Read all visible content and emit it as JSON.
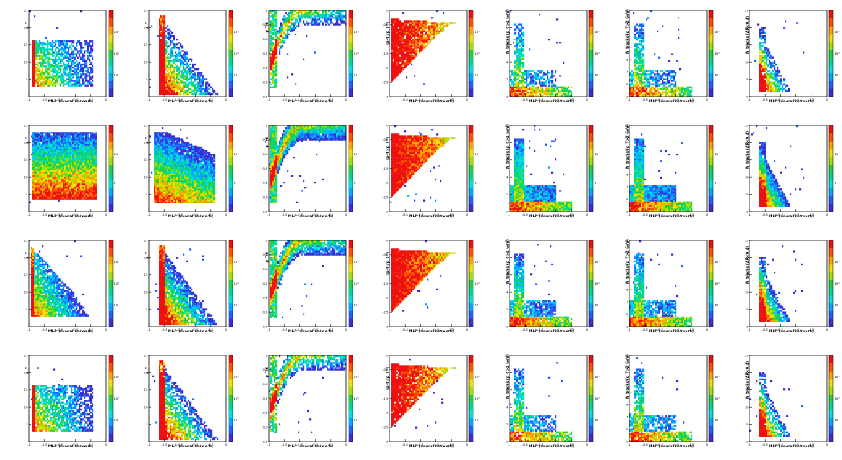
{
  "figure": {
    "rows": 4,
    "cols": 7
  },
  "chart_data": [
    {
      "type": "heatmap",
      "shape": "left-top",
      "xlabel": "MLP (neural network)",
      "ylabel": "p_T",
      "xlim": [
        -1,
        0
      ],
      "ylim": [
        0,
        25
      ],
      "xticks": [
        "-1",
        "-0.8",
        "-0.6",
        "-0.4",
        "-0.2",
        "0"
      ],
      "yticks": [
        "5",
        "10",
        "15",
        "20",
        "25"
      ],
      "colorbar": [
        "10",
        "10²",
        "10³"
      ],
      "density": "sparse"
    },
    {
      "type": "heatmap",
      "shape": "steep-decay",
      "xlabel": "MLP (neural network)",
      "ylabel": "p_T",
      "xlim": [
        -1,
        0
      ],
      "ylim": [
        0,
        25
      ],
      "xticks": [
        "-1",
        "-0.8",
        "-0.6",
        "-0.4",
        "-0.2",
        "0"
      ],
      "yticks": [
        "5",
        "10",
        "15",
        "20",
        "25"
      ],
      "colorbar": [
        "10",
        "10²",
        "10³"
      ],
      "density": "sparse"
    },
    {
      "type": "heatmap",
      "shape": "rise",
      "xlabel": "MLP (neural network)",
      "ylabel": "p_T/E",
      "xlim": [
        -1,
        0
      ],
      "ylim": [
        0.4,
        1
      ],
      "xticks": [
        "-1",
        "-0.8",
        "-0.6",
        "-0.4",
        "-0.2",
        "0"
      ],
      "yticks": [
        "0.4",
        "0.5",
        "0.6",
        "0.7",
        "0.8",
        "0.9",
        "1"
      ],
      "colorbar": [
        "10",
        "10²",
        "10³"
      ],
      "density": "sparse"
    },
    {
      "type": "heatmap",
      "shape": "funnel",
      "xlabel": "MLP (neural network)",
      "ylabel": "(p_T)/p_T^J",
      "xlim": [
        -1,
        0
      ],
      "ylim": [
        -3,
        0
      ],
      "xticks": [
        "-1",
        "-0.8",
        "-0.6",
        "-0.4",
        "-0.2",
        "0"
      ],
      "yticks": [
        "-3",
        "-2.5",
        "-2",
        "-1.5",
        "-1",
        "-0.5",
        "0"
      ],
      "colorbar": [
        "10",
        "10²",
        "10³"
      ],
      "density": "sparse"
    },
    {
      "type": "heatmap",
      "shape": "bottom-band",
      "xlabel": "MLP (neural network)",
      "ylabel": "N_tracks (p_T>1 GeV)",
      "xlim": [
        -1,
        0
      ],
      "ylim": [
        0,
        10
      ],
      "xticks": [
        "-1",
        "-0.8",
        "-0.6",
        "-0.4",
        "-0.2",
        "0"
      ],
      "yticks": [
        "0",
        "2",
        "4",
        "6",
        "8",
        "10"
      ],
      "colorbar": [
        "10",
        "10²",
        "10³"
      ],
      "density": "sparse"
    },
    {
      "type": "heatmap",
      "shape": "bottom-band",
      "xlabel": "MLP (neural network)",
      "ylabel": "N_tracks (p_T>2 GeV)",
      "xlim": [
        -1,
        0
      ],
      "ylim": [
        0,
        14
      ],
      "xticks": [
        "-1",
        "-0.8",
        "-0.6",
        "-0.4",
        "-0.2",
        "0"
      ],
      "yticks": [
        "0",
        "2",
        "4",
        "6",
        "8",
        "10",
        "12",
        "14"
      ],
      "colorbar": [
        "10",
        "10²",
        "10³"
      ],
      "density": "sparse"
    },
    {
      "type": "heatmap",
      "shape": "corner",
      "xlabel": "MLP (neural network)",
      "ylabel": "N_tracks (ΔR<0.4)",
      "xlim": [
        -1,
        0
      ],
      "ylim": [
        0,
        25
      ],
      "xticks": [
        "-1",
        "-0.8",
        "-0.6",
        "-0.4",
        "-0.2",
        "0"
      ],
      "yticks": [
        "0",
        "5",
        "10",
        "15",
        "20",
        "25"
      ],
      "colorbar": [
        "10",
        "10²",
        "10³"
      ],
      "density": "sparse"
    },
    {
      "type": "heatmap",
      "shape": "box",
      "xlabel": "MLP (neural network)",
      "ylabel": "p_T",
      "xlim": [
        -1,
        0
      ],
      "ylim": [
        0,
        25
      ],
      "xticks": [
        "-1",
        "-0.8",
        "-0.6",
        "-0.4",
        "-0.2",
        "0"
      ],
      "yticks": [
        "5",
        "10",
        "15",
        "20",
        "25"
      ],
      "colorbar": [
        "1",
        "10"
      ],
      "density": "dense"
    },
    {
      "type": "heatmap",
      "shape": "box-decay",
      "xlabel": "MLP (neural network)",
      "ylabel": "p_T",
      "xlim": [
        -1,
        0
      ],
      "ylim": [
        0,
        25
      ],
      "xticks": [
        "-1",
        "-0.8",
        "-0.6",
        "-0.4",
        "-0.2",
        "0"
      ],
      "yticks": [
        "5",
        "10",
        "15",
        "20",
        "25"
      ],
      "colorbar": [
        "1",
        "10"
      ],
      "density": "dense"
    },
    {
      "type": "heatmap",
      "shape": "rise",
      "xlabel": "MLP (neural network)",
      "ylabel": "p_T/E",
      "xlim": [
        -1,
        0
      ],
      "ylim": [
        0.4,
        1
      ],
      "xticks": [
        "-1",
        "-0.8",
        "-0.6",
        "-0.4",
        "-0.2",
        "0"
      ],
      "yticks": [
        "0.4",
        "0.5",
        "0.6",
        "0.7",
        "0.8",
        "0.9",
        "1"
      ],
      "colorbar": [
        "1",
        "10"
      ],
      "density": "dense"
    },
    {
      "type": "heatmap",
      "shape": "funnel",
      "xlabel": "MLP (neural network)",
      "ylabel": "(p_T)/p_T^J",
      "xlim": [
        -1,
        0
      ],
      "ylim": [
        -3,
        0
      ],
      "xticks": [
        "-1",
        "-0.8",
        "-0.6",
        "-0.4",
        "-0.2",
        "0"
      ],
      "yticks": [
        "-3",
        "-2.5",
        "-2",
        "-1.5",
        "-1",
        "-0.5",
        "0"
      ],
      "colorbar": [
        "1",
        "10"
      ],
      "density": "dense"
    },
    {
      "type": "heatmap",
      "shape": "bottom-band",
      "xlabel": "MLP (neural network)",
      "ylabel": "N_tracks (p_T>1 GeV)",
      "xlim": [
        -1,
        0
      ],
      "ylim": [
        0,
        10
      ],
      "xticks": [
        "-1",
        "-0.8",
        "-0.6",
        "-0.4",
        "-0.2",
        "0"
      ],
      "yticks": [
        "0",
        "2",
        "4",
        "6",
        "8",
        "10"
      ],
      "colorbar": [
        "1",
        "10"
      ],
      "density": "dense"
    },
    {
      "type": "heatmap",
      "shape": "bottom-band",
      "xlabel": "MLP (neural network)",
      "ylabel": "N_tracks (p_T>2 GeV)",
      "xlim": [
        -1,
        0
      ],
      "ylim": [
        0,
        14
      ],
      "xticks": [
        "-1",
        "-0.8",
        "-0.6",
        "-0.4",
        "-0.2",
        "0"
      ],
      "yticks": [
        "0",
        "2",
        "4",
        "6",
        "8",
        "10",
        "12",
        "14"
      ],
      "colorbar": [
        "1",
        "10"
      ],
      "density": "dense"
    },
    {
      "type": "heatmap",
      "shape": "corner",
      "xlabel": "MLP (neural network)",
      "ylabel": "N_tracks (ΔR<0.4)",
      "xlim": [
        -1,
        0
      ],
      "ylim": [
        0,
        25
      ],
      "xticks": [
        "-1",
        "-0.8",
        "-0.6",
        "-0.4",
        "-0.2",
        "0"
      ],
      "yticks": [
        "0",
        "5",
        "10",
        "15",
        "20",
        "25"
      ],
      "colorbar": [
        "1",
        "10"
      ],
      "density": "dense"
    },
    {
      "type": "heatmap",
      "shape": "triangle",
      "xlabel": "MLP (neural network)",
      "ylabel": "p_T",
      "xlim": [
        -1,
        0
      ],
      "ylim": [
        0,
        25
      ],
      "xticks": [
        "-1",
        "-0.8",
        "-0.6",
        "-0.4",
        "-0.2",
        "0"
      ],
      "yticks": [
        "5",
        "10",
        "15",
        "20",
        "25"
      ],
      "colorbar": [
        "10",
        "10²",
        "10³"
      ],
      "density": "medium"
    },
    {
      "type": "heatmap",
      "shape": "steep-decay",
      "xlabel": "MLP (neural network)",
      "ylabel": "p_T",
      "xlim": [
        -1,
        0
      ],
      "ylim": [
        0,
        25
      ],
      "xticks": [
        "-1",
        "-0.8",
        "-0.6",
        "-0.4",
        "-0.2",
        "0"
      ],
      "yticks": [
        "5",
        "10",
        "15",
        "20",
        "25"
      ],
      "colorbar": [
        "10",
        "10²",
        "10³"
      ],
      "density": "medium"
    },
    {
      "type": "heatmap",
      "shape": "rise",
      "xlabel": "MLP (neural network)",
      "ylabel": "p_T/E",
      "xlim": [
        -1,
        0
      ],
      "ylim": [
        0.4,
        1
      ],
      "xticks": [
        "-1",
        "-0.8",
        "-0.6",
        "-0.4",
        "-0.2",
        "0"
      ],
      "yticks": [
        "0.4",
        "0.5",
        "0.6",
        "0.7",
        "0.8",
        "0.9",
        "1"
      ],
      "colorbar": [
        "10",
        "10²",
        "10³"
      ],
      "density": "medium"
    },
    {
      "type": "heatmap",
      "shape": "funnel",
      "xlabel": "MLP (neural network)",
      "ylabel": "(p_T)/p_T^J",
      "xlim": [
        -1,
        0
      ],
      "ylim": [
        -3,
        0
      ],
      "xticks": [
        "-1",
        "-0.8",
        "-0.6",
        "-0.4",
        "-0.2",
        "0"
      ],
      "yticks": [
        "-3",
        "-2.5",
        "-2",
        "-1.5",
        "-1",
        "-0.5",
        "0"
      ],
      "colorbar": [
        "10",
        "10²",
        "10³"
      ],
      "density": "medium"
    },
    {
      "type": "heatmap",
      "shape": "bottom-band",
      "xlabel": "MLP (neural network)",
      "ylabel": "N_tracks (p_T>1 GeV)",
      "xlim": [
        -1,
        0
      ],
      "ylim": [
        0,
        10
      ],
      "xticks": [
        "-1",
        "-0.8",
        "-0.6",
        "-0.4",
        "-0.2",
        "0"
      ],
      "yticks": [
        "0",
        "2",
        "4",
        "6",
        "8",
        "10"
      ],
      "colorbar": [
        "10",
        "10²",
        "10³"
      ],
      "density": "medium"
    },
    {
      "type": "heatmap",
      "shape": "bottom-band",
      "xlabel": "MLP (neural network)",
      "ylabel": "N_tracks (p_T>2 GeV)",
      "xlim": [
        -1,
        0
      ],
      "ylim": [
        0,
        14
      ],
      "xticks": [
        "-1",
        "-0.8",
        "-0.6",
        "-0.4",
        "-0.2",
        "0"
      ],
      "yticks": [
        "0",
        "2",
        "4",
        "6",
        "8",
        "10",
        "12",
        "14"
      ],
      "colorbar": [
        "10",
        "10²",
        "10³"
      ],
      "density": "medium"
    },
    {
      "type": "heatmap",
      "shape": "corner",
      "xlabel": "MLP (neural network)",
      "ylabel": "N_tracks (ΔR<0.4)",
      "xlim": [
        -1,
        0
      ],
      "ylim": [
        0,
        25
      ],
      "xticks": [
        "-1",
        "-0.8",
        "-0.6",
        "-0.4",
        "-0.2",
        "0"
      ],
      "yticks": [
        "0",
        "5",
        "10",
        "15",
        "20",
        "25"
      ],
      "colorbar": [
        "10",
        "10²",
        "10³"
      ],
      "density": "medium"
    },
    {
      "type": "heatmap",
      "shape": "left-top",
      "xlabel": "MLP (neural network)",
      "ylabel": "p_T",
      "xlim": [
        -1,
        0
      ],
      "ylim": [
        0,
        25
      ],
      "xticks": [
        "-1",
        "-0.8",
        "-0.6",
        "-0.4",
        "-0.2",
        "0"
      ],
      "yticks": [
        "5",
        "10",
        "15",
        "20",
        "25"
      ],
      "colorbar": [
        "10",
        "10²",
        "10³"
      ],
      "density": "sparse"
    },
    {
      "type": "heatmap",
      "shape": "steep-decay",
      "xlabel": "MLP (neural network)",
      "ylabel": "p_T",
      "xlim": [
        -1,
        0
      ],
      "ylim": [
        0,
        25
      ],
      "xticks": [
        "-1",
        "-0.8",
        "-0.6",
        "-0.4",
        "-0.2",
        "0"
      ],
      "yticks": [
        "5",
        "10",
        "15",
        "20",
        "25"
      ],
      "colorbar": [
        "10",
        "10²",
        "10³"
      ],
      "density": "sparse"
    },
    {
      "type": "heatmap",
      "shape": "rise",
      "xlabel": "MLP (neural network)",
      "ylabel": "p_T/E",
      "xlim": [
        -1,
        0
      ],
      "ylim": [
        0.4,
        1
      ],
      "xticks": [
        "-1",
        "-0.8",
        "-0.6",
        "-0.4",
        "-0.2",
        "0"
      ],
      "yticks": [
        "0.4",
        "0.5",
        "0.6",
        "0.7",
        "0.8",
        "0.9",
        "1"
      ],
      "colorbar": [
        "10",
        "10²",
        "10³"
      ],
      "density": "sparse"
    },
    {
      "type": "heatmap",
      "shape": "funnel",
      "xlabel": "MLP (neural network)",
      "ylabel": "(p_T)/p_T^J",
      "xlim": [
        -1,
        0
      ],
      "ylim": [
        -3,
        0
      ],
      "xticks": [
        "-1",
        "-0.8",
        "-0.6",
        "-0.4",
        "-0.2",
        "0"
      ],
      "yticks": [
        "-3",
        "-2.5",
        "-2",
        "-1.5",
        "-1",
        "-0.5",
        "0"
      ],
      "colorbar": [
        "10",
        "10²",
        "10³"
      ],
      "density": "sparse"
    },
    {
      "type": "heatmap",
      "shape": "bottom-band",
      "xlabel": "MLP (neural network)",
      "ylabel": "N_tracks (p_T>1 GeV)",
      "xlim": [
        -1,
        0
      ],
      "ylim": [
        0,
        10
      ],
      "xticks": [
        "-1",
        "-0.8",
        "-0.6",
        "-0.4",
        "-0.2",
        "0"
      ],
      "yticks": [
        "0",
        "2",
        "4",
        "6",
        "8",
        "10"
      ],
      "colorbar": [
        "10",
        "10²",
        "10³"
      ],
      "density": "sparse"
    },
    {
      "type": "heatmap",
      "shape": "bottom-band",
      "xlabel": "MLP (neural network)",
      "ylabel": "N_tracks (p_T>2 GeV)",
      "xlim": [
        -1,
        0
      ],
      "ylim": [
        0,
        14
      ],
      "xticks": [
        "-1",
        "-0.8",
        "-0.6",
        "-0.4",
        "-0.2",
        "0"
      ],
      "yticks": [
        "0",
        "2",
        "4",
        "6",
        "8",
        "10",
        "12",
        "14"
      ],
      "colorbar": [
        "10",
        "10²",
        "10³"
      ],
      "density": "sparse"
    },
    {
      "type": "heatmap",
      "shape": "corner",
      "xlabel": "MLP (neural network)",
      "ylabel": "N_tracks (ΔR<0.4)",
      "xlim": [
        -1,
        0
      ],
      "ylim": [
        0,
        25
      ],
      "xticks": [
        "-1",
        "-0.8",
        "-0.6",
        "-0.4",
        "-0.2",
        "0"
      ],
      "yticks": [
        "0",
        "5",
        "10",
        "15",
        "20",
        "25"
      ],
      "colorbar": [
        "10",
        "10²",
        "10³"
      ],
      "density": "sparse"
    }
  ],
  "palette": [
    "#3b2fd0",
    "#1f60ff",
    "#00a8ff",
    "#00e0e0",
    "#00d890",
    "#20d040",
    "#a0e000",
    "#f0e000",
    "#ffa000",
    "#ff5000",
    "#ee1010"
  ]
}
